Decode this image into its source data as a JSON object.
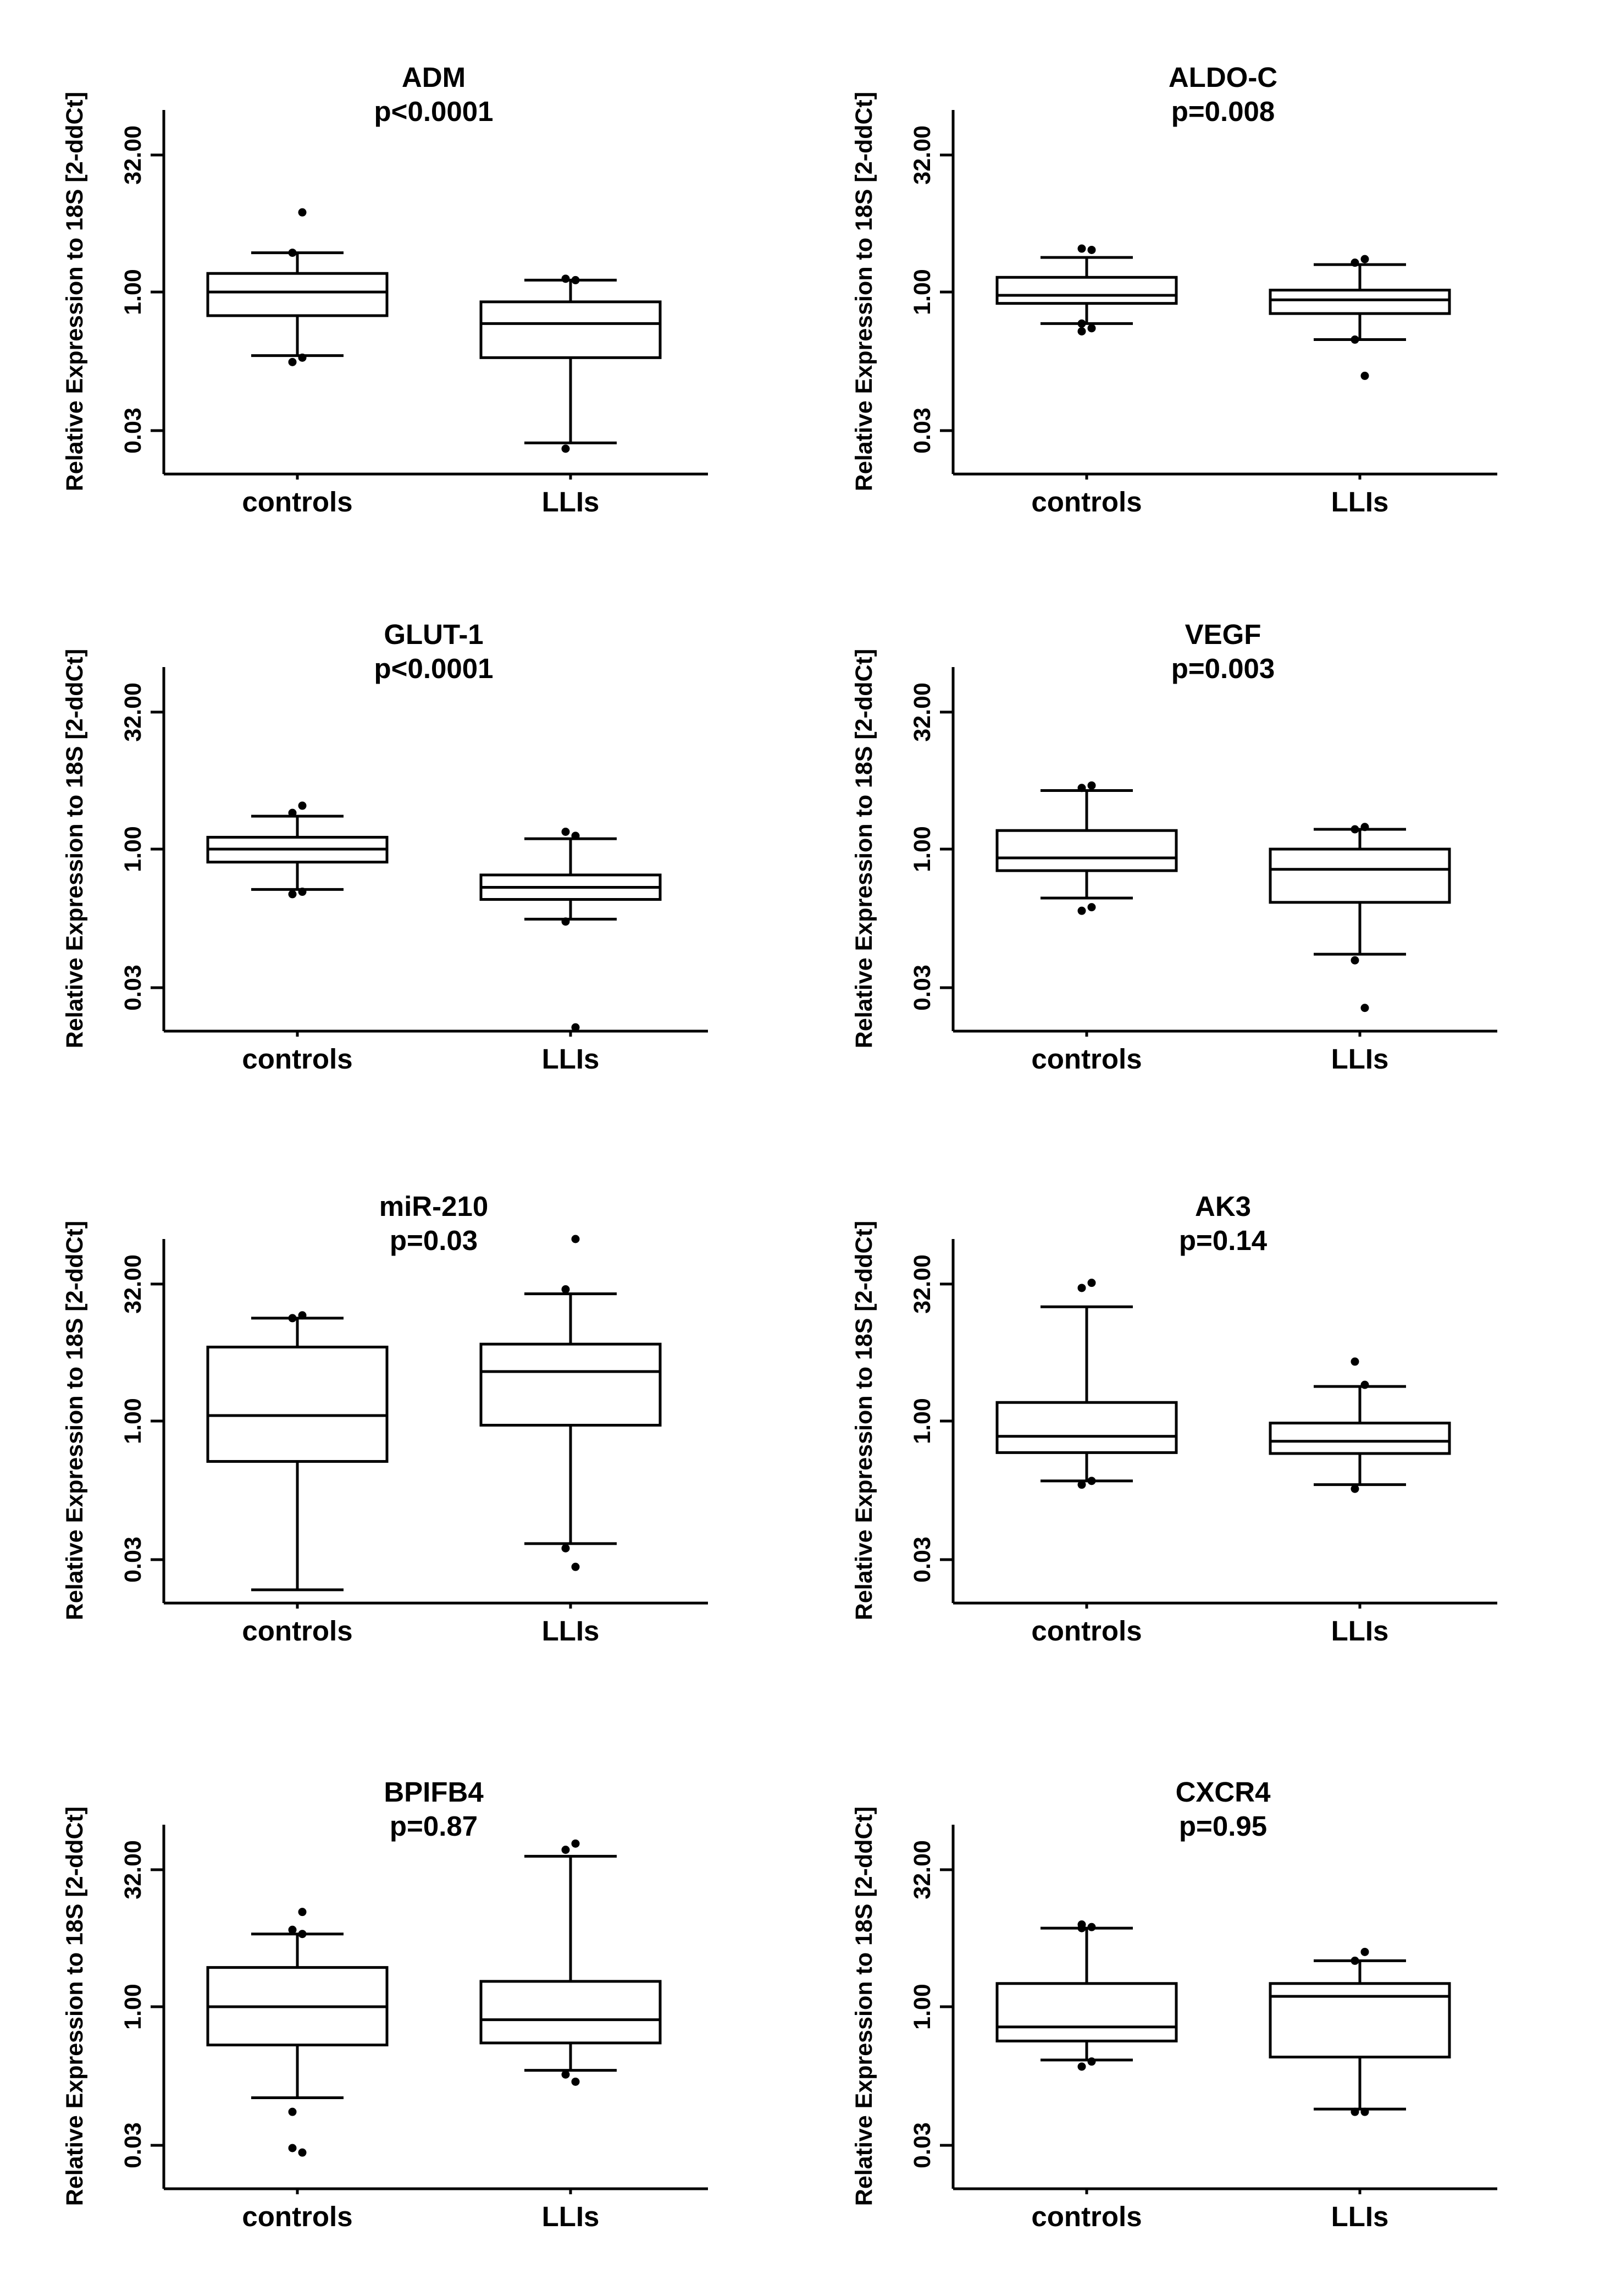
{
  "chart_data": [
    {
      "type": "boxplot",
      "title": "ADM",
      "subtitle": "p<0.0001",
      "ylabel": "Relative Expression to 18S [2-ddCt]",
      "yscale": "log2",
      "ylim": [
        0.01,
        100
      ],
      "yticks": [
        0.03,
        1.0,
        32.0
      ],
      "yticklabels": [
        "0.03",
        "1.00",
        "32.00"
      ],
      "categories": [
        "controls",
        "LLIs"
      ],
      "boxes": [
        {
          "whislo": 0.2,
          "q1": 0.55,
          "med": 1.0,
          "q3": 1.6,
          "whishi": 2.7,
          "fliers": [
            0.17,
            0.19,
            2.7,
            7.5
          ]
        },
        {
          "whislo": 0.022,
          "q1": 0.19,
          "med": 0.45,
          "q3": 0.78,
          "whishi": 1.35,
          "fliers": [
            0.019,
            1.35,
            1.4
          ]
        }
      ]
    },
    {
      "type": "boxplot",
      "title": "ALDO-C",
      "subtitle": "p=0.008",
      "ylabel": "Relative Expression to 18S [2-ddCt]",
      "yscale": "log2",
      "ylim": [
        0.01,
        100
      ],
      "yticks": [
        0.03,
        1.0,
        32.0
      ],
      "yticklabels": [
        "0.03",
        "1.00",
        "32.00"
      ],
      "categories": [
        "controls",
        "LLIs"
      ],
      "boxes": [
        {
          "whislo": 0.45,
          "q1": 0.75,
          "med": 0.92,
          "q3": 1.45,
          "whishi": 2.4,
          "fliers": [
            0.37,
            0.4,
            0.45,
            2.9,
            3.0
          ]
        },
        {
          "whislo": 0.3,
          "q1": 0.58,
          "med": 0.82,
          "q3": 1.05,
          "whishi": 2.0,
          "fliers": [
            0.3,
            0.12,
            2.1,
            2.3
          ]
        }
      ]
    },
    {
      "type": "boxplot",
      "title": "GLUT-1",
      "subtitle": "p<0.0001",
      "ylabel": "Relative Expression to 18S [2-ddCt]",
      "yscale": "log2",
      "ylim": [
        0.01,
        100
      ],
      "yticks": [
        0.03,
        1.0,
        32.0
      ],
      "yticklabels": [
        "0.03",
        "1.00",
        "32.00"
      ],
      "categories": [
        "controls",
        "LLIs"
      ],
      "boxes": [
        {
          "whislo": 0.36,
          "q1": 0.72,
          "med": 1.0,
          "q3": 1.35,
          "whishi": 2.3,
          "fliers": [
            0.32,
            0.34,
            2.5,
            3.0
          ]
        },
        {
          "whislo": 0.17,
          "q1": 0.28,
          "med": 0.38,
          "q3": 0.52,
          "whishi": 1.3,
          "fliers": [
            0.16,
            1.4,
            1.55,
            0.011
          ]
        }
      ]
    },
    {
      "type": "boxplot",
      "title": "VEGF",
      "subtitle": "p=0.003",
      "ylabel": "Relative Expression to 18S [2-ddCt]",
      "yscale": "log2",
      "ylim": [
        0.01,
        100
      ],
      "yticks": [
        0.03,
        1.0,
        32.0
      ],
      "yticklabels": [
        "0.03",
        "1.00",
        "32.00"
      ],
      "categories": [
        "controls",
        "LLIs"
      ],
      "boxes": [
        {
          "whislo": 0.29,
          "q1": 0.58,
          "med": 0.8,
          "q3": 1.6,
          "whishi": 4.4,
          "fliers": [
            0.21,
            0.23,
            4.7,
            5.0
          ]
        },
        {
          "whislo": 0.07,
          "q1": 0.26,
          "med": 0.6,
          "q3": 1.0,
          "whishi": 1.65,
          "fliers": [
            0.06,
            0.018,
            1.65,
            1.75
          ]
        }
      ]
    },
    {
      "type": "boxplot",
      "title": "miR-210",
      "subtitle": "p=0.03",
      "ylabel": "Relative Expression to 18S [2-ddCt]",
      "yscale": "log2",
      "ylim": [
        0.01,
        100
      ],
      "yticks": [
        0.03,
        1.0,
        32.0
      ],
      "yticklabels": [
        "0.03",
        "1.00",
        "32.00"
      ],
      "categories": [
        "controls",
        "LLIs"
      ],
      "boxes": [
        {
          "whislo": 0.014,
          "q1": 0.36,
          "med": 1.15,
          "q3": 6.5,
          "whishi": 13.5,
          "fliers": [
            13.5,
            14.5
          ]
        },
        {
          "whislo": 0.045,
          "q1": 0.9,
          "med": 3.5,
          "q3": 7.0,
          "whishi": 25,
          "fliers": [
            0.04,
            0.025,
            28,
            100
          ]
        }
      ]
    },
    {
      "type": "boxplot",
      "title": "AK3",
      "subtitle": "p=0.14",
      "ylabel": "Relative Expression to 18S [2-ddCt]",
      "yscale": "log2",
      "ylim": [
        0.01,
        100
      ],
      "yticks": [
        0.03,
        1.0,
        32.0
      ],
      "yticklabels": [
        "0.03",
        "1.00",
        "32.00"
      ],
      "categories": [
        "controls",
        "LLIs"
      ],
      "boxes": [
        {
          "whislo": 0.22,
          "q1": 0.45,
          "med": 0.68,
          "q3": 1.6,
          "whishi": 18,
          "fliers": [
            0.2,
            0.22,
            29,
            33
          ]
        },
        {
          "whislo": 0.2,
          "q1": 0.44,
          "med": 0.6,
          "q3": 0.95,
          "whishi": 2.4,
          "fliers": [
            0.18,
            2.5,
            4.5
          ]
        }
      ]
    },
    {
      "type": "boxplot",
      "title": "BPIFB4",
      "subtitle": "p=0.87",
      "ylabel": "Relative Expression to 18S [2-ddCt]",
      "yscale": "log2",
      "ylim": [
        0.01,
        100
      ],
      "yticks": [
        0.03,
        1.0,
        32.0
      ],
      "yticklabels": [
        "0.03",
        "1.00",
        "32.00"
      ],
      "categories": [
        "controls",
        "LLIs"
      ],
      "boxes": [
        {
          "whislo": 0.1,
          "q1": 0.38,
          "med": 1.0,
          "q3": 2.7,
          "whishi": 6.3,
          "fliers": [
            0.07,
            0.025,
            0.028,
            6.3,
            7.0,
            11
          ]
        },
        {
          "whislo": 0.2,
          "q1": 0.4,
          "med": 0.72,
          "q3": 1.9,
          "whishi": 45,
          "fliers": [
            0.18,
            0.15,
            53,
            62
          ]
        }
      ]
    },
    {
      "type": "boxplot",
      "title": "CXCR4",
      "subtitle": "p=0.95",
      "ylabel": "Relative Expression to 18S [2-ddCt]",
      "yscale": "log2",
      "ylim": [
        0.01,
        100
      ],
      "yticks": [
        0.03,
        1.0,
        32.0
      ],
      "yticklabels": [
        "0.03",
        "1.00",
        "32.00"
      ],
      "categories": [
        "controls",
        "LLIs"
      ],
      "boxes": [
        {
          "whislo": 0.26,
          "q1": 0.42,
          "med": 0.6,
          "q3": 1.8,
          "whishi": 7.3,
          "fliers": [
            0.22,
            0.25,
            7.3,
            7.5,
            8.0
          ]
        },
        {
          "whislo": 0.075,
          "q1": 0.28,
          "med": 1.3,
          "q3": 1.8,
          "whishi": 3.2,
          "fliers": [
            0.07,
            0.07,
            3.2,
            4.0
          ]
        }
      ]
    }
  ]
}
